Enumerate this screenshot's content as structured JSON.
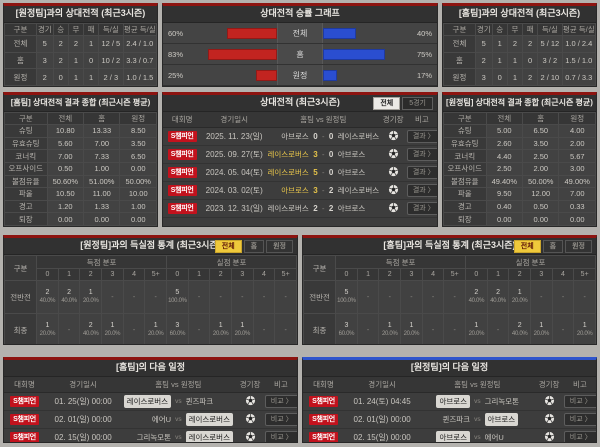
{
  "h2h_home": {
    "title": "[원정팀]과의 상대전적 (최근3시즌)",
    "headers": [
      "구분",
      "경기",
      "승",
      "무",
      "패",
      "득/실",
      "평균 득/실"
    ],
    "rows": [
      [
        "전체",
        "5",
        "2",
        "2",
        "1",
        "12 / 5",
        "2.4 / 1.0"
      ],
      [
        "홈",
        "3",
        "2",
        "1",
        "0",
        "10 / 2",
        "3.3 / 0.7"
      ],
      [
        "원정",
        "2",
        "0",
        "1",
        "1",
        "2 / 3",
        "1.0 / 1.5"
      ]
    ]
  },
  "winrate": {
    "title": "상대전적 승률 그래프",
    "home_color": "#c22420",
    "away_color": "#2a4ed0",
    "rows": [
      {
        "left_pct": "60%",
        "left_val": 60,
        "label": "전체",
        "right_pct": "40%",
        "right_val": 40
      },
      {
        "left_pct": "83%",
        "left_val": 83,
        "label": "홈",
        "right_pct": "75%",
        "right_val": 75
      },
      {
        "left_pct": "25%",
        "left_val": 25,
        "label": "원정",
        "right_pct": "17%",
        "right_val": 17
      }
    ]
  },
  "h2h_away": {
    "title": "[홈팀]과의 상대전적 (최근3시즌)",
    "headers": [
      "구분",
      "경기",
      "승",
      "무",
      "패",
      "득/실",
      "평균 득/실"
    ],
    "rows": [
      [
        "전체",
        "5",
        "1",
        "2",
        "2",
        "5 / 12",
        "1.0 / 2.4"
      ],
      [
        "홈",
        "2",
        "1",
        "1",
        "0",
        "3 / 2",
        "1.5 / 1.0"
      ],
      [
        "원정",
        "3",
        "0",
        "1",
        "2",
        "2 / 10",
        "0.7 / 3.3"
      ]
    ]
  },
  "summary_home": {
    "title": "[홈팀] 상대전적 결과 종합 (최근시즌 평균)",
    "headers": [
      "구분",
      "전체",
      "홈",
      "원정"
    ],
    "rows": [
      [
        "슈팅",
        "10.80",
        "13.33",
        "8.50"
      ],
      [
        "유효슈팅",
        "5.60",
        "7.00",
        "3.50"
      ],
      [
        "코너킥",
        "7.00",
        "7.33",
        "6.50"
      ],
      [
        "오프사이드",
        "0.50",
        "1.00",
        "0.00"
      ],
      [
        "볼점유율",
        "50.60%",
        "51.00%",
        "50.00%"
      ],
      [
        "파울",
        "10.50",
        "11.00",
        "10.00"
      ],
      [
        "경고",
        "1.20",
        "1.33",
        "1.00"
      ],
      [
        "퇴장",
        "0.00",
        "0.00",
        "0.00"
      ]
    ]
  },
  "matches": {
    "title": "상대전적 (최근3시즌)",
    "tabs": [
      {
        "label": "전체",
        "active": true
      },
      {
        "label": "5경기",
        "active": false
      }
    ],
    "headers": [
      "대회명",
      "경기일시",
      "홈팀 vs 원정팀",
      "경기장",
      "비고"
    ],
    "score_separator": "-",
    "button_label": "결과 〉",
    "rows": [
      {
        "league": "S챔피언",
        "date": "2025. 11. 23(일)",
        "home": "아브로스",
        "score_h": "0",
        "score_a": "0",
        "away": "레이스로버스",
        "win": "none"
      },
      {
        "league": "S챔피언",
        "date": "2025. 09. 27(토)",
        "home": "레이스로버스",
        "score_h": "3",
        "score_a": "0",
        "away": "아브로스",
        "win": "home"
      },
      {
        "league": "S챔피언",
        "date": "2024. 05. 04(토)",
        "home": "레이스로버스",
        "score_h": "5",
        "score_a": "0",
        "away": "아브로스",
        "win": "home"
      },
      {
        "league": "S챔피언",
        "date": "2024. 03. 02(토)",
        "home": "아브로스",
        "score_h": "3",
        "score_a": "2",
        "away": "레이스로버스",
        "win": "home"
      },
      {
        "league": "S챔피언",
        "date": "2023. 12. 31(일)",
        "home": "레이스로버스",
        "score_h": "2",
        "score_a": "2",
        "away": "아브로스",
        "win": "none"
      }
    ]
  },
  "summary_away": {
    "title": "[원정팀] 상대전적 결과 종합 (최근시즌 평균)",
    "headers": [
      "구분",
      "전체",
      "홈",
      "원정"
    ],
    "rows": [
      [
        "슈팅",
        "5.00",
        "6.50",
        "4.00"
      ],
      [
        "유효슈팅",
        "2.60",
        "3.50",
        "2.00"
      ],
      [
        "코너킥",
        "4.40",
        "2.50",
        "5.67"
      ],
      [
        "오프사이드",
        "2.50",
        "2.00",
        "3.00"
      ],
      [
        "볼점유율",
        "49.40%",
        "50.00%",
        "49.00%"
      ],
      [
        "파울",
        "9.50",
        "12.00",
        "7.00"
      ],
      [
        "경고",
        "0.40",
        "0.50",
        "0.33"
      ],
      [
        "퇴장",
        "0.00",
        "0.00",
        "0.00"
      ]
    ]
  },
  "goals_home": {
    "title": "[원정팀]과의 득실점 통계 (최근3시즌)",
    "tabs": [
      "전체",
      "홈",
      "원정"
    ],
    "col_label": "구분",
    "group1": "득점 분포",
    "group2": "실점 분포",
    "cols": [
      "0",
      "1",
      "2",
      "3",
      "4",
      "5+"
    ],
    "rows": [
      {
        "label": "전반전",
        "score": [
          "2|40.0%",
          "2|40.0%",
          "1|20.0%",
          "-",
          "-",
          "-"
        ],
        "concede": [
          "5|100.0%",
          "-",
          "-",
          "-",
          "-",
          "-"
        ]
      },
      {
        "label": "최종",
        "score": [
          "1|20.0%",
          "-",
          "2|40.0%",
          "1|20.0%",
          "-",
          "1|20.0%"
        ],
        "concede": [
          "3|60.0%",
          "-",
          "1|20.0%",
          "1|20.0%",
          "-",
          "-"
        ]
      }
    ]
  },
  "goals_away": {
    "title": "[홈팀]과의 득실점 통계 (최근3시즌)",
    "tabs": [
      "전체",
      "홈",
      "원정"
    ],
    "col_label": "구분",
    "group1": "득점 분포",
    "group2": "실점 분포",
    "cols": [
      "0",
      "1",
      "2",
      "3",
      "4",
      "5+"
    ],
    "rows": [
      {
        "label": "전반전",
        "score": [
          "5|100.0%",
          "-",
          "-",
          "-",
          "-",
          "-"
        ],
        "concede": [
          "2|40.0%",
          "2|40.0%",
          "1|20.0%",
          "-",
          "-",
          "-"
        ]
      },
      {
        "label": "최종",
        "score": [
          "3|60.0%",
          "-",
          "1|20.0%",
          "1|20.0%",
          "-",
          "-"
        ],
        "concede": [
          "1|20.0%",
          "-",
          "2|40.0%",
          "1|20.0%",
          "-",
          "1|20.0%"
        ]
      }
    ]
  },
  "next_home": {
    "title": "[홈팀]의 다음 일정",
    "headers": [
      "대회명",
      "경기일시",
      "홈팀 vs 원정팀",
      "경기장",
      "비고"
    ],
    "vs_label": "vs",
    "button_label": "비교 〉",
    "rows": [
      {
        "league": "S챔피언",
        "datetime": "01. 25(일) 00:00",
        "home": "레이스로버스",
        "away": "퀸즈파크",
        "focal": "home"
      },
      {
        "league": "S챔피언",
        "datetime": "02. 01(일) 00:00",
        "home": "에어U",
        "away": "레이스로버스",
        "focal": "away"
      },
      {
        "league": "S챔피언",
        "datetime": "02. 15(일) 00:00",
        "home": "그리녹모톤",
        "away": "레이스로버스",
        "focal": "away"
      }
    ]
  },
  "next_away": {
    "title": "[원정팀]의 다음 일정",
    "headers": [
      "대회명",
      "경기일시",
      "홈팀 vs 원정팀",
      "경기장",
      "비고"
    ],
    "vs_label": "vs",
    "button_label": "비교 〉",
    "rows": [
      {
        "league": "S챔피언",
        "datetime": "01. 24(토) 04:45",
        "home": "아브로스",
        "away": "그리녹모톤",
        "focal": "home"
      },
      {
        "league": "S챔피언",
        "datetime": "02. 01(일) 00:00",
        "home": "퀸즈파크",
        "away": "아브로스",
        "focal": "away"
      },
      {
        "league": "S챔피언",
        "datetime": "02. 15(일) 00:00",
        "home": "아브로스",
        "away": "에어U",
        "focal": "home"
      }
    ]
  }
}
